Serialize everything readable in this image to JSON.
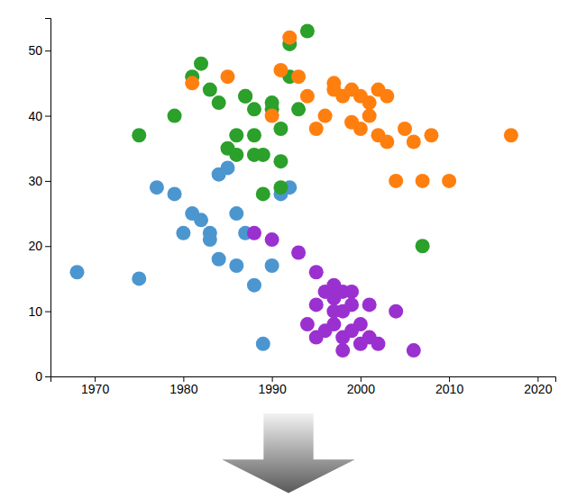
{
  "chart_data": {
    "type": "scatter",
    "xlim": [
      1965,
      2022
    ],
    "ylim": [
      0,
      55
    ],
    "xticks": [
      1970,
      1980,
      1990,
      2000,
      2010,
      2020
    ],
    "yticks": [
      0,
      10,
      20,
      30,
      40,
      50
    ],
    "series": [
      {
        "color": "#4C96D0",
        "x": [
          1968,
          1975,
          1977,
          1979,
          1980,
          1981,
          1982,
          1983,
          1983,
          1984,
          1984,
          1985,
          1986,
          1986,
          1987,
          1988,
          1989,
          1990,
          1991,
          1992
        ],
        "values": [
          16,
          15,
          29,
          28,
          22,
          25,
          24,
          22,
          21,
          18,
          31,
          32,
          25,
          17,
          22,
          14,
          5,
          17,
          28,
          29
        ]
      },
      {
        "color": "#2BA02B",
        "x": [
          1975,
          1979,
          1981,
          1982,
          1983,
          1984,
          1985,
          1986,
          1986,
          1987,
          1987,
          1988,
          1988,
          1988,
          1989,
          1989,
          1990,
          1990,
          1991,
          1991,
          1991,
          1992,
          1992,
          1993,
          1994,
          2007
        ],
        "values": [
          37,
          40,
          46,
          48,
          44,
          42,
          35,
          37,
          34,
          43,
          43,
          41,
          37,
          34,
          34,
          28,
          41,
          42,
          38,
          33,
          29,
          46,
          51,
          41,
          53,
          20
        ]
      },
      {
        "color": "#FF7F0E",
        "x": [
          1981,
          1985,
          1990,
          1991,
          1992,
          1993,
          1994,
          1995,
          1996,
          1997,
          1997,
          1998,
          1999,
          1999,
          2000,
          2000,
          2001,
          2001,
          2002,
          2002,
          2003,
          2003,
          2004,
          2005,
          2006,
          2007,
          2008,
          2010,
          2017
        ],
        "values": [
          45,
          46,
          40,
          47,
          52,
          46,
          43,
          38,
          40,
          44,
          45,
          43,
          39,
          44,
          38,
          43,
          42,
          40,
          37,
          44,
          36,
          43,
          30,
          38,
          36,
          30,
          37,
          30,
          37
        ]
      },
      {
        "color": "#9B30D0",
        "x": [
          1988,
          1990,
          1993,
          1994,
          1995,
          1995,
          1995,
          1996,
          1996,
          1997,
          1997,
          1997,
          1997,
          1998,
          1998,
          1998,
          1998,
          1999,
          1999,
          1999,
          2000,
          2000,
          2001,
          2001,
          2002,
          2004,
          2006
        ],
        "values": [
          22,
          21,
          19,
          8,
          6,
          11,
          16,
          7,
          13,
          8,
          10,
          12,
          14,
          4,
          6,
          10,
          13,
          7,
          11,
          13,
          5,
          8,
          6,
          11,
          5,
          10,
          4
        ]
      }
    ]
  }
}
